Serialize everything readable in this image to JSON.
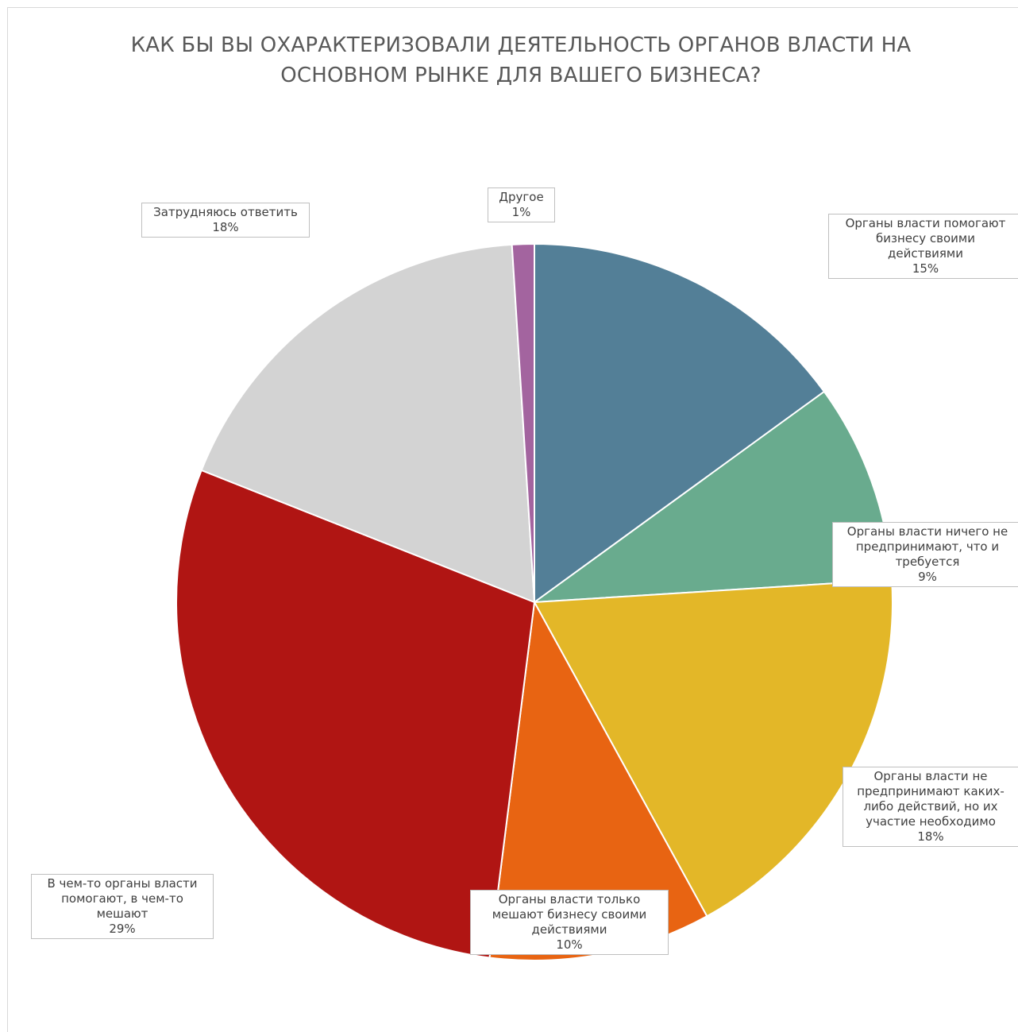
{
  "chart_data": {
    "type": "pie",
    "title": "КАК БЫ ВЫ ОХАРАКТЕРИЗОВАЛИ ДЕЯТЕЛЬНОСТЬ ОРГАНОВ ВЛАСТИ НА ОСНОВНОМ РЫНКЕ ДЛЯ ВАШЕГО БИЗНЕСА?",
    "title_lines": [
      "КАК БЫ ВЫ ОХАРАКТЕРИЗОВАЛИ ДЕЯТЕЛЬНОСТЬ ОРГАНОВ ВЛАСТИ НА",
      "ОСНОВНОМ РЫНКЕ ДЛЯ ВАШЕГО БИЗНЕСА?"
    ],
    "start_angle_deg": 0,
    "direction": "clockwise",
    "slices": [
      {
        "name": "Органы власти помогают бизнесу своими действиями",
        "label_lines": [
          "Органы власти помогают",
          "бизнесу своими",
          "действиями"
        ],
        "value": 15,
        "value_label": "15%",
        "color": "#537f97"
      },
      {
        "name": "Органы власти ничего не предпринимают, что и требуется",
        "label_lines": [
          "Органы власти ничего не",
          "предпринимают, что и",
          "требуется"
        ],
        "value": 9,
        "value_label": "9%",
        "color": "#69ab8e"
      },
      {
        "name": "Органы власти не предпринимают каких-либо действий, но их участие необходимо",
        "label_lines": [
          "Органы власти не",
          "предпринимают каких-",
          "либо действий, но их",
          "участие необходимо"
        ],
        "value": 18,
        "value_label": "18%",
        "color": "#e3b728"
      },
      {
        "name": "Органы власти только мешают бизнесу своими действиями",
        "label_lines": [
          "Органы власти только",
          "мешают бизнесу своими",
          "действиями"
        ],
        "value": 10,
        "value_label": "10%",
        "color": "#e86412"
      },
      {
        "name": "В чем-то органы власти помогают, в чем-то мешают",
        "label_lines": [
          "В чем-то органы власти",
          "помогают, в чем-то",
          "мешают"
        ],
        "value": 29,
        "value_label": "29%",
        "color": "#b01513"
      },
      {
        "name": "Затрудняюсь ответить",
        "label_lines": [
          "Затрудняюсь ответить"
        ],
        "value": 18,
        "value_label": "18%",
        "color": "#d3d3d3"
      },
      {
        "name": "Другое",
        "label_lines": [
          "Другое"
        ],
        "value": 1,
        "value_label": "1%",
        "color": "#a3649f"
      }
    ]
  }
}
